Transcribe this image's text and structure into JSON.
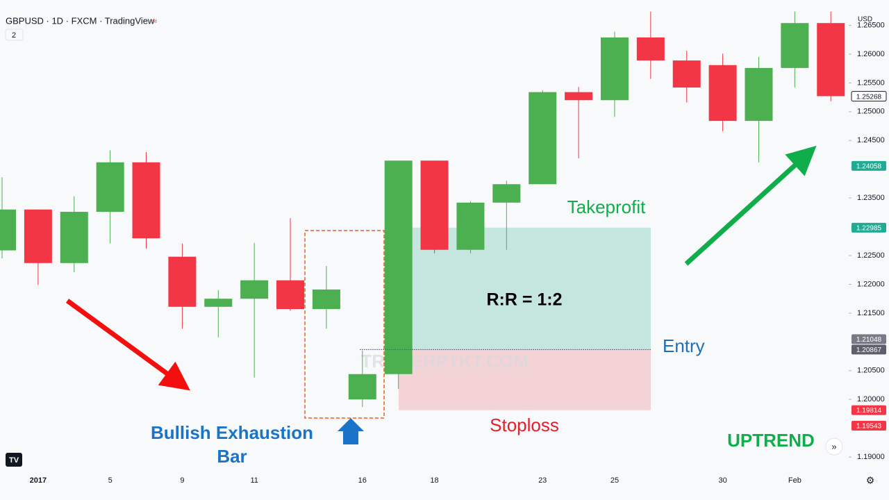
{
  "chart_data": {
    "type": "candlestick",
    "title": "GBPUSD · 1D · FXCM · TradingView",
    "hidden_indicators": 2,
    "currency": "USD",
    "categories": [
      null,
      "2017",
      null,
      "5",
      null,
      "9",
      null,
      "11",
      null,
      null,
      "16",
      null,
      "18",
      null,
      null,
      "23",
      null,
      "25",
      null,
      null,
      "30",
      null,
      "Feb",
      null
    ],
    "open": [
      1.2259,
      1.233,
      1.2237,
      1.2326,
      1.2412,
      1.2248,
      1.2161,
      1.2175,
      1.2207,
      1.2157,
      1.2,
      1.2044,
      1.2415,
      1.226,
      1.2342,
      1.2374,
      1.2534,
      1.252,
      1.2629,
      1.2589,
      1.2581,
      1.2484,
      1.2576,
      1.2654
    ],
    "high": [
      1.2386,
      1.233,
      1.2353,
      1.2433,
      1.243,
      1.2271,
      1.219,
      1.2272,
      1.2315,
      1.2232,
      1.2085,
      1.2415,
      1.2415,
      1.2344,
      1.238,
      1.2537,
      1.2543,
      1.2639,
      1.2674,
      1.2606,
      1.2601,
      1.2595,
      1.2674,
      1.2674
    ],
    "low": [
      1.2245,
      1.2199,
      1.2221,
      1.2271,
      1.2262,
      1.2123,
      1.2108,
      1.2038,
      1.2154,
      1.2123,
      1.1987,
      1.2018,
      1.2254,
      1.2254,
      1.226,
      1.2374,
      1.2419,
      1.2491,
      1.2557,
      1.2516,
      1.2466,
      1.2412,
      1.2542,
      1.2518
    ],
    "close": [
      1.233,
      1.2237,
      1.2326,
      1.2412,
      1.228,
      1.2161,
      1.2175,
      1.2207,
      1.2157,
      1.2191,
      1.2044,
      1.2415,
      1.226,
      1.2342,
      1.2374,
      1.2534,
      1.252,
      1.2629,
      1.2589,
      1.2542,
      1.2484,
      1.2576,
      1.2654,
      1.2527
    ],
    "up_color": "#4caf50",
    "down_color": "#f23645",
    "ylim": [
      1.18735,
      1.26941
    ],
    "yticks": [
      {
        "value": 1.19,
        "label": "1.19000"
      },
      {
        "value": 1.2,
        "label": "1.20000"
      },
      {
        "value": 1.205,
        "label": "1.20500"
      },
      {
        "value": 1.215,
        "label": "1.21500"
      },
      {
        "value": 1.22,
        "label": "1.22000"
      },
      {
        "value": 1.225,
        "label": "1.22500"
      },
      {
        "value": 1.235,
        "label": "1.23500"
      },
      {
        "value": 1.245,
        "label": "1.24500"
      },
      {
        "value": 1.25,
        "label": "1.25000"
      },
      {
        "value": 1.255,
        "label": "1.25500"
      },
      {
        "value": 1.26,
        "label": "1.26000"
      },
      {
        "value": 1.265,
        "label": "1.26500"
      }
    ],
    "price_labels": [
      {
        "value": 1.25268,
        "color": "#ffffff"
      },
      {
        "value": 1.24058,
        "color": "#22ab94"
      },
      {
        "value": 1.22985,
        "color": "#22ab94"
      },
      {
        "value": 1.21048,
        "color": "#787b86"
      },
      {
        "value": 1.20867,
        "color": "#5d606b"
      },
      {
        "value": 1.19814,
        "color": "#f23645"
      },
      {
        "value": 1.19543,
        "color": "#f23645"
      }
    ],
    "position": {
      "takeprofit": 1.22985,
      "entry": 1.20867,
      "stoploss": 1.19814
    },
    "annotations": {
      "takeprofit": "Takeprofit",
      "entry": "Entry",
      "stoploss": "Stoploss",
      "risk_reward": "R:R = 1:2",
      "pattern": [
        "Bullish Exhaustion",
        "Bar"
      ],
      "trend": "UPTREND",
      "watermark": "TRADERPTKT.COM"
    }
  }
}
